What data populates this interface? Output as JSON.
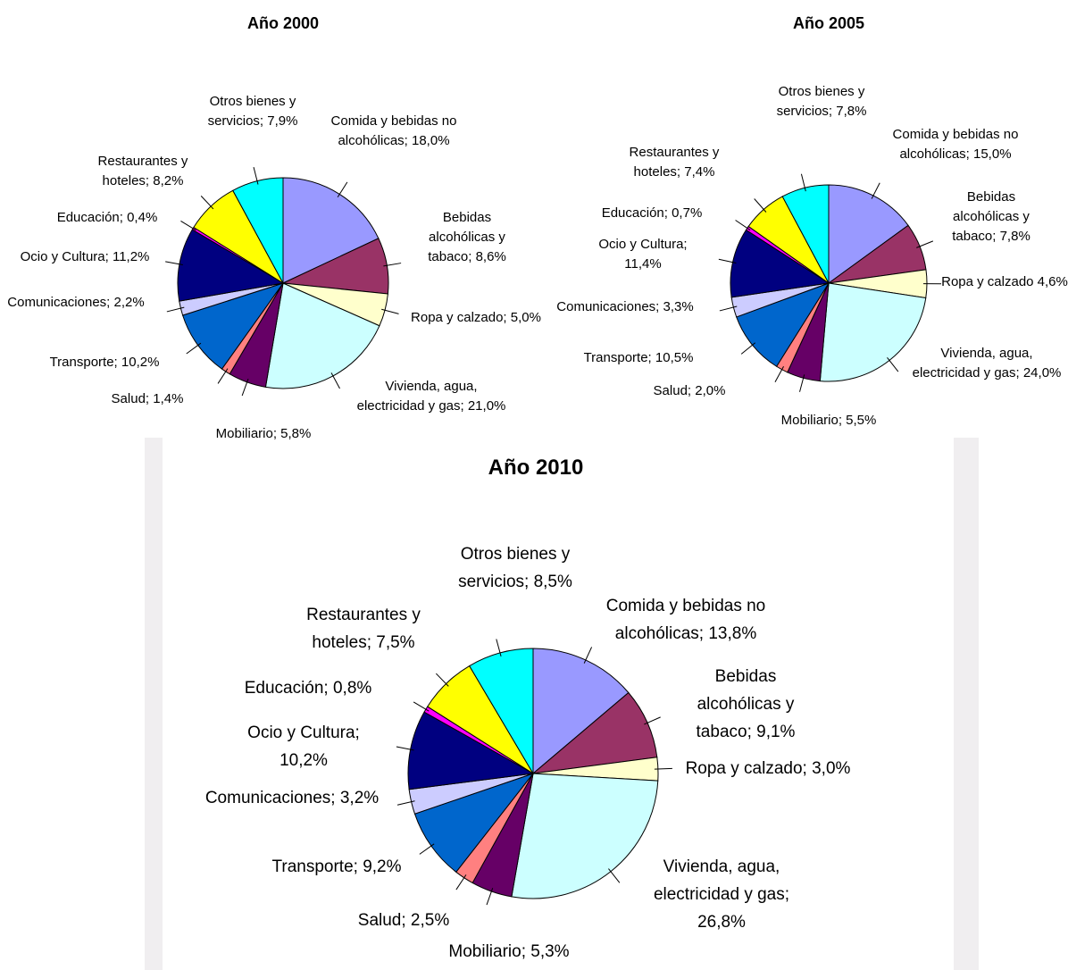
{
  "chart_data": [
    {
      "type": "pie",
      "title": "Año 2000",
      "values": [
        18.0,
        8.6,
        5.0,
        21.0,
        5.8,
        1.4,
        10.2,
        2.2,
        11.2,
        0.4,
        8.2,
        7.9
      ],
      "value_labels": [
        "Comida y bebidas no alcohólicas; 18,0%",
        "Bebidas alcohólicas y tabaco; 8,6%",
        "Ropa y calzado; 5,0%",
        "Vivienda, agua, electricidad y gas; 21,0%",
        "Mobiliario; 5,8%",
        "Salud; 1,4%",
        "Transporte; 10,2%",
        "Comunicaciones; 2,2%",
        "Ocio y Cultura; 11,2%",
        "Educación; 0,4%",
        "Restaurantes y hoteles; 8,2%",
        "Otros bienes y servicios; 7,9%"
      ],
      "colors": [
        "#9999ff",
        "#993366",
        "#ffffcc",
        "#ccffff",
        "#660066",
        "#ff8080",
        "#0066cc",
        "#ccccff",
        "#000080",
        "#ff00ff",
        "#ffff00",
        "#00ffff"
      ]
    },
    {
      "type": "pie",
      "title": "Año 2005",
      "values": [
        15.0,
        7.8,
        4.6,
        24.0,
        5.5,
        2.0,
        10.5,
        3.3,
        11.4,
        0.7,
        7.4,
        7.8
      ],
      "value_labels": [
        "Comida y bebidas no alcohólicas; 15,0%",
        "Bebidas alcohólicas y tabaco; 7,8%",
        "Ropa y calzado 4,6%",
        "Vivienda, agua, electricidad y gas; 24,0%",
        "Mobiliario; 5,5%",
        "Salud; 2,0%",
        "Transporte; 10,5%",
        "Comunicaciones; 3,3%",
        "Ocio y Cultura; 11,4%",
        "Educación; 0,7%",
        "Restaurantes y hoteles; 7,4%",
        "Otros bienes y servicios; 7,8%"
      ],
      "colors": [
        "#9999ff",
        "#993366",
        "#ffffcc",
        "#ccffff",
        "#660066",
        "#ff8080",
        "#0066cc",
        "#ccccff",
        "#000080",
        "#ff00ff",
        "#ffff00",
        "#00ffff"
      ]
    },
    {
      "type": "pie",
      "title": "Año 2010",
      "values": [
        13.8,
        9.1,
        3.0,
        26.8,
        5.3,
        2.5,
        9.2,
        3.2,
        10.2,
        0.8,
        7.5,
        8.5
      ],
      "value_labels": [
        "Comida y bebidas no alcohólicas; 13,8%",
        "Bebidas alcohólicas y tabaco; 9,1%",
        "Ropa y calzado; 3,0%",
        "Vivienda, agua, electricidad y gas; 26,8%",
        "Mobiliario; 5,3%",
        "Salud; 2,5%",
        "Transporte; 9,2%",
        "Comunicaciones; 3,2%",
        "Ocio y Cultura; 10,2%",
        "Educación; 0,8%",
        "Restaurantes y hoteles; 7,5%",
        "Otros bienes y servicios; 8,5%"
      ],
      "colors": [
        "#9999ff",
        "#993366",
        "#ffffcc",
        "#ccffff",
        "#660066",
        "#ff8080",
        "#0066cc",
        "#ccccff",
        "#000080",
        "#ff00ff",
        "#ffff00",
        "#00ffff"
      ]
    }
  ]
}
